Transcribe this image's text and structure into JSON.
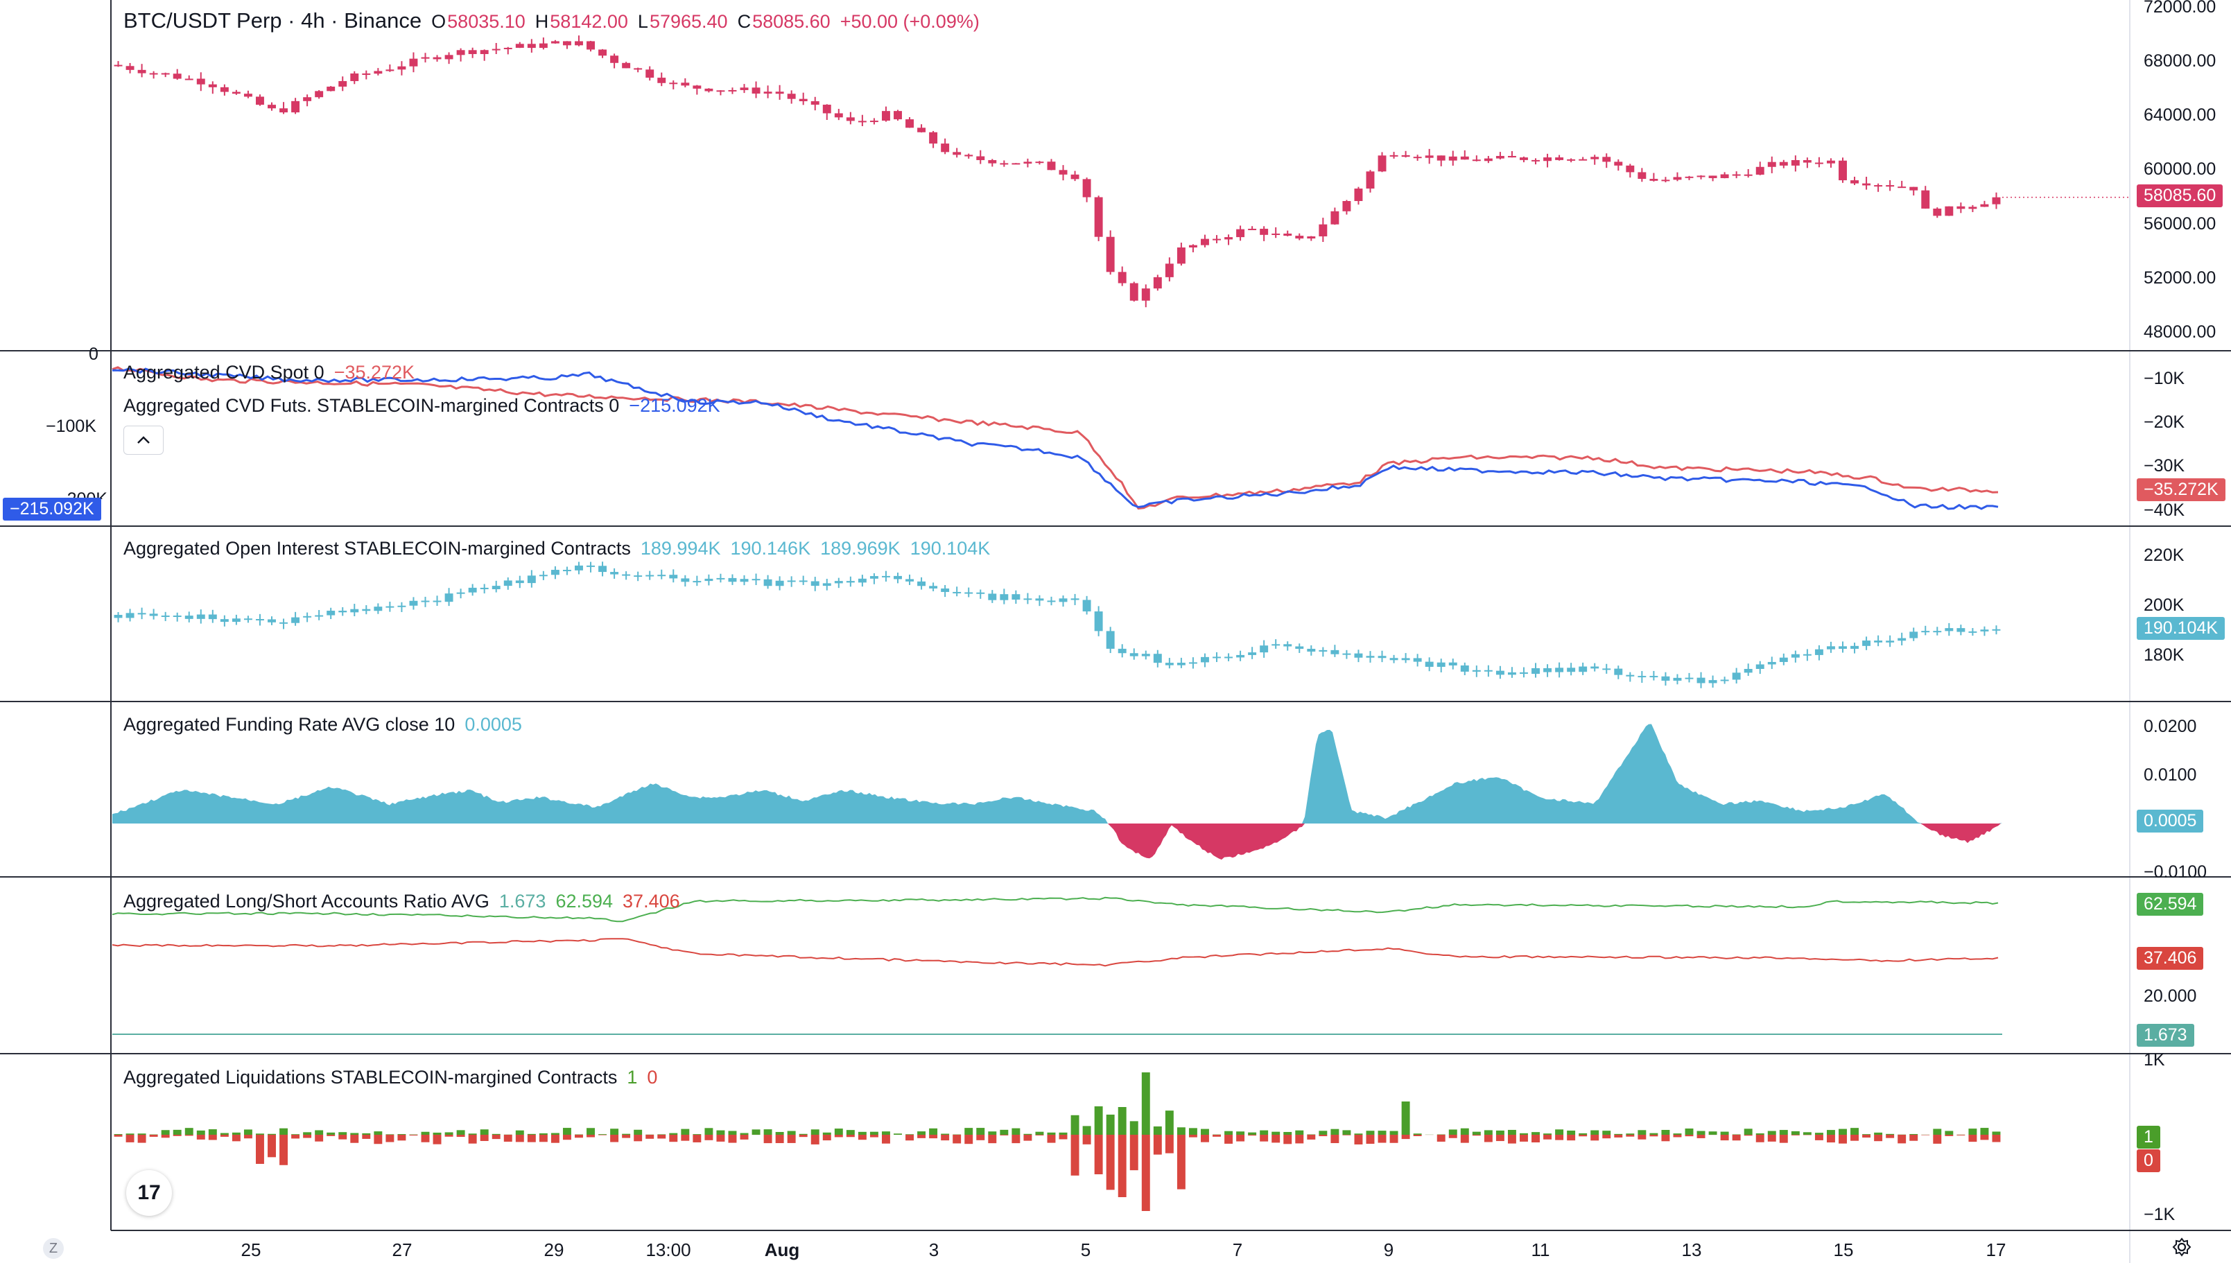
{
  "symbol_legend": {
    "title": "BTC/USDT Perp · 4h · Binance",
    "o_label": "O",
    "o": "58035.10",
    "h_label": "H",
    "h": "58142.00",
    "l_label": "L",
    "l": "57965.40",
    "c_label": "C",
    "c": "58085.60",
    "change": "+50.00 (+0.09%)"
  },
  "panes": {
    "price": {
      "axis_labels": [
        "72000.00",
        "68000.00",
        "64000.00",
        "60000.00",
        "56000.00",
        "52000.00",
        "48000.00"
      ],
      "last_price": "58085.60",
      "colors": {
        "candle": "#d63864",
        "tag": "#d63864"
      }
    },
    "cvd": {
      "name_spot": "Aggregated CVD Spot 0",
      "value_spot": "−35.272K",
      "name_futs": "Aggregated CVD Futs. STABLECOIN-margined Contracts 0",
      "value_futs": "−215.092K",
      "collapse_icon": "chevron-up-icon",
      "left_axis_labels": [
        "0",
        "−100K",
        "−200K"
      ],
      "left_tag": "−215.092K",
      "right_axis_labels": [
        "−10K",
        "−20K",
        "−30K",
        "−40K"
      ],
      "right_tag": "−35.272K",
      "colors": {
        "spot": "#e05a5f",
        "futs": "#2f5be8"
      }
    },
    "oi": {
      "name": "Aggregated Open Interest STABLECOIN-margined Contracts",
      "values": [
        "189.994K",
        "190.146K",
        "189.969K",
        "190.104K"
      ],
      "axis_labels": [
        "220K",
        "200K",
        "180K"
      ],
      "tag": "190.104K",
      "colors": {
        "candle": "#5ab8d0"
      }
    },
    "funding": {
      "name": "Aggregated Funding Rate AVG close 10",
      "value": "0.0005",
      "axis_labels": [
        "0.0200",
        "0.0100",
        "−0.0100"
      ],
      "tag": "0.0005",
      "colors": {
        "positive": "#5ab8d0",
        "negative": "#d63864"
      }
    },
    "ls": {
      "name": "Aggregated Long/Short Accounts Ratio AVG",
      "v1": "1.673",
      "v2": "62.594",
      "v3": "37.406",
      "axis_labels": [
        "20.000"
      ],
      "tags": [
        "62.594",
        "37.406",
        "1.673"
      ],
      "colors": {
        "long": "#4caf50",
        "short": "#d9463f",
        "ratio": "#5aaea2"
      }
    },
    "liq": {
      "name": "Aggregated Liquidations STABLECOIN-margined Contracts",
      "v1": "1",
      "v2": "0",
      "axis_labels": [
        "1K",
        "−1K"
      ],
      "tags": [
        "1",
        "0"
      ],
      "colors": {
        "long": "#4a9e2a",
        "short": "#d9463f"
      }
    }
  },
  "time_axis": [
    "25",
    "27",
    "29",
    "13:00",
    "Aug",
    "3",
    "5",
    "7",
    "9",
    "11",
    "13",
    "15",
    "17"
  ],
  "buttons": {
    "z": "Z",
    "logo": "17",
    "settings_icon": "gear-icon"
  }
}
